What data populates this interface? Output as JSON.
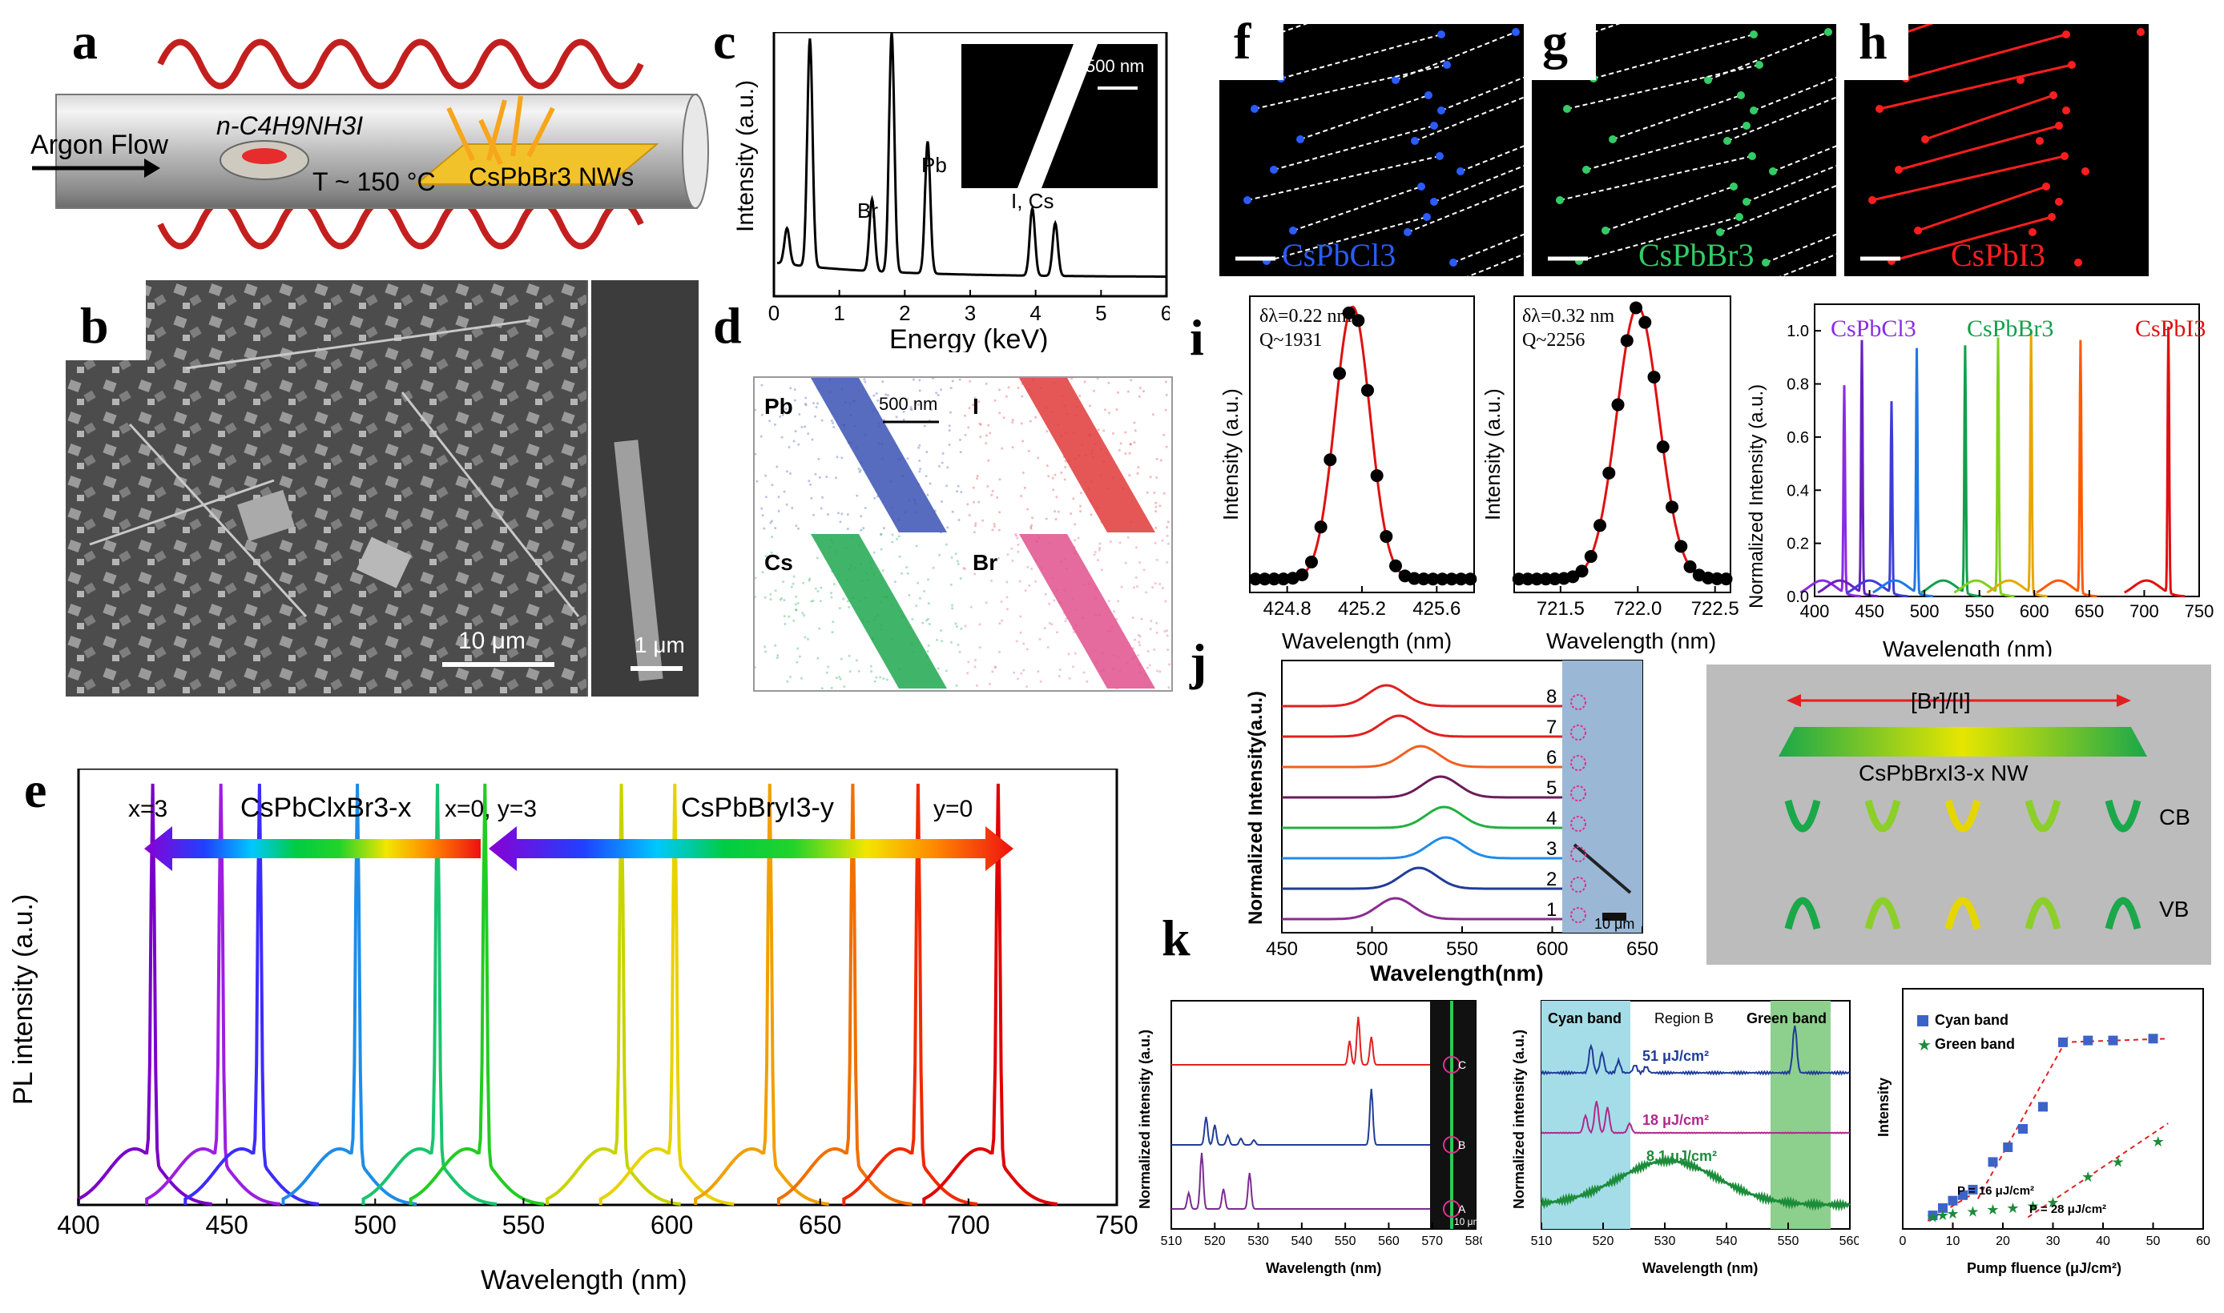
{
  "labels": {
    "a": "a",
    "b": "b",
    "c": "c",
    "d": "d",
    "e": "e",
    "f": "f",
    "g": "g",
    "h": "h",
    "i": "i",
    "j": "j",
    "k": "k"
  },
  "panel_a": {
    "argon": "Argon Flow",
    "precursor": "n-C4H9NH3I",
    "temp": "T ~ 150 °C",
    "product": "CsPbBr3 NWs"
  },
  "panel_b": {
    "scale_main": "10 μm",
    "scale_inset": "1 μm"
  },
  "panel_c": {
    "ylabel": "Intensity (a.u.)",
    "xlabel": "Energy (keV)",
    "inset_scale": "500 nm",
    "peak_br": "Br",
    "peak_pb": "Pb",
    "peak_ics": "I, Cs",
    "xticks": [
      "0",
      "1",
      "2",
      "3",
      "4",
      "5",
      "6"
    ]
  },
  "panel_d": {
    "scale": "500 nm",
    "maps": [
      "Pb",
      "I",
      "Cs",
      "Br"
    ],
    "colors": [
      "#3a52b4",
      "#e03a3a",
      "#1ea850",
      "#e0508c"
    ]
  },
  "panel_e": {
    "ylabel": "PL intensity (a.u.)",
    "xlabel": "Wavelength (nm)",
    "left_formula": "CsPbClxBr3-x",
    "right_formula": "CsPbBryI3-y",
    "x3": "x=3",
    "x0": "x=0, y=3",
    "y0": "y=0",
    "xticks": [
      "400",
      "450",
      "500",
      "550",
      "600",
      "650",
      "700",
      "750"
    ]
  },
  "panel_fgh": {
    "f_label": "CsPbCl3",
    "g_label": "CsPbBr3",
    "h_label": "CsPbI3",
    "f_color": "#2a5cff",
    "g_color": "#33cc66",
    "h_color": "#ff1e1e"
  },
  "panel_i": {
    "left": {
      "note1": "δλ=0.22 nm",
      "note2": "Q~1931",
      "ylabel": "Intensity (a.u.)",
      "xlabel": "Wavelength (nm)",
      "xticks": [
        "424.8",
        "425.2",
        "425.6"
      ]
    },
    "mid": {
      "note1": "δλ=0.32 nm",
      "note2": "Q~2256",
      "ylabel": "Intensity (a.u.)",
      "xlabel": "Wavelength (nm)",
      "xticks": [
        "721.5",
        "722.0",
        "722.5"
      ]
    },
    "right": {
      "ylabel": "Normalized Intensity (a.u.)",
      "xlabel": "Wavelength (nm)",
      "cl": "CsPbCl3",
      "br": "CsPbBr3",
      "i": "CsPbI3",
      "xticks": [
        "400",
        "450",
        "500",
        "550",
        "600",
        "650",
        "700",
        "750"
      ],
      "yticks": [
        "0.0",
        "0.2",
        "0.4",
        "0.6",
        "0.8",
        "1.0"
      ]
    }
  },
  "panel_j": {
    "ylabel": "Normalized Intensity(a.u.)",
    "xlabel": "Wavelength(nm)",
    "xticks": [
      "450",
      "500",
      "550",
      "600",
      "650"
    ],
    "traces": [
      "8",
      "7",
      "6",
      "5",
      "4",
      "3",
      "2",
      "1"
    ],
    "scale": "10 μm",
    "ratio": "[Br]/[I]",
    "nw": "CsPbBrxI3-x NW",
    "cb": "CB",
    "vb": "VB"
  },
  "panel_k": {
    "left": {
      "ylabel": "Normalized intensity (a.u.)",
      "xlabel": "Wavelength (nm)",
      "xticks": [
        "510",
        "520",
        "530",
        "540",
        "550",
        "560",
        "570",
        "580"
      ],
      "points": [
        "C",
        "B",
        "A"
      ],
      "scale": "10 μm"
    },
    "mid": {
      "ylabel": "Normalized intensity (a.u.)",
      "xlabel": "Wavelength (nm)",
      "cyan": "Cyan band",
      "region": "Region B",
      "green": "Green band",
      "f51": "51 μJ/cm²",
      "f18": "18 μJ/cm²",
      "f8": "8.1 μJ/cm²",
      "xticks": [
        "510",
        "520",
        "530",
        "540",
        "550",
        "560"
      ]
    },
    "right": {
      "ylabel": "Intensity",
      "xlabel": "Pump fluence (μJ/cm²)",
      "leg_cyan": "Cyan band",
      "leg_green": "Green band",
      "p16": "P = 16 μJ/cm²",
      "p28": "P = 28 μJ/cm²",
      "xticks": [
        "0",
        "10",
        "20",
        "30",
        "40",
        "50",
        "60"
      ]
    }
  },
  "chart_data": [
    {
      "type": "line",
      "title": "c",
      "xlabel": "Energy (keV)",
      "ylabel": "Intensity (a.u.)",
      "xlim": [
        0,
        6
      ],
      "x": [
        0.2,
        0.55,
        1.8,
        1.5,
        2.35,
        3.95,
        4.3
      ],
      "y": [
        0.15,
        0.95,
        1.0,
        0.3,
        0.55,
        0.28,
        0.22
      ]
    },
    {
      "type": "line",
      "title": "e",
      "xlabel": "Wavelength (nm)",
      "ylabel": "PL intensity (a.u.)",
      "xlim": [
        400,
        750
      ],
      "peaks_nm": [
        425,
        448,
        461,
        494,
        521,
        537,
        583,
        601,
        633,
        661,
        683,
        710
      ]
    },
    {
      "type": "line",
      "title": "i-left",
      "xlabel": "Wavelength (nm)",
      "xlim": [
        424.6,
        425.8
      ],
      "peak": 425.15,
      "fwhm": 0.22
    },
    {
      "type": "line",
      "title": "i-mid",
      "xlabel": "Wavelength (nm)",
      "xlim": [
        721.2,
        722.6
      ],
      "peak": 722.0,
      "fwhm": 0.32
    },
    {
      "type": "line",
      "title": "i-right",
      "xlabel": "Wavelength (nm)",
      "ylabel": "Normalized Intensity (a.u.)",
      "xlim": [
        400,
        750
      ],
      "ylim": [
        0,
        1.1
      ],
      "peaks_nm": [
        427,
        443,
        470,
        493,
        537,
        567,
        597,
        642,
        722
      ]
    },
    {
      "type": "line",
      "title": "j",
      "xlabel": "Wavelength(nm)",
      "ylabel": "Normalized Intensity(a.u.)",
      "xlim": [
        450,
        650
      ],
      "series": [
        {
          "name": "8",
          "peak": 508
        },
        {
          "name": "7",
          "peak": 515
        },
        {
          "name": "6",
          "peak": 527
        },
        {
          "name": "5",
          "peak": 538
        },
        {
          "name": "4",
          "peak": 540
        },
        {
          "name": "3",
          "peak": 541
        },
        {
          "name": "2",
          "peak": 526
        },
        {
          "name": "1",
          "peak": 513
        }
      ]
    },
    {
      "type": "scatter",
      "title": "k-right",
      "xlabel": "Pump fluence (μJ/cm²)",
      "ylabel": "Intensity",
      "xlim": [
        0,
        60
      ],
      "series": [
        {
          "name": "Cyan band",
          "x": [
            6,
            8,
            10,
            12,
            14,
            18,
            21,
            24,
            28,
            32,
            37,
            42,
            50
          ],
          "y": [
            0.03,
            0.07,
            0.11,
            0.14,
            0.17,
            0.32,
            0.4,
            0.5,
            0.62,
            0.97,
            0.98,
            0.98,
            0.99
          ]
        },
        {
          "name": "Green band",
          "x": [
            6,
            8,
            10,
            14,
            18,
            22,
            26,
            30,
            37,
            43,
            51
          ],
          "y": [
            0.02,
            0.03,
            0.04,
            0.05,
            0.06,
            0.07,
            0.08,
            0.1,
            0.24,
            0.32,
            0.43
          ]
        }
      ]
    }
  ]
}
